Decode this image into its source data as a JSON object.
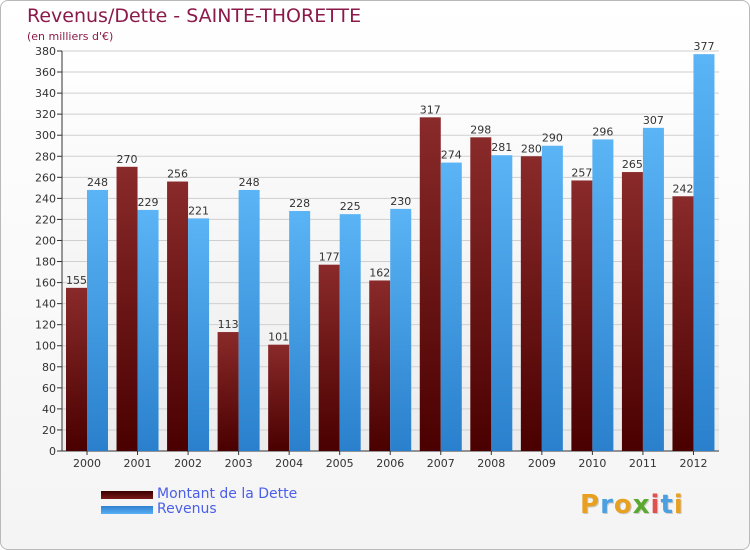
{
  "title": "Revenus/Dette - SAINTE-THORETTE",
  "subtitle": "(en milliers d'€)",
  "legend": {
    "debt": "Montant de la Dette",
    "revenue": "Revenus"
  },
  "logo": {
    "letters": [
      "P",
      "r",
      "o",
      "x",
      "i",
      "t",
      "i"
    ],
    "colors": [
      "#e8a020",
      "#4aa0e0",
      "#e8a020",
      "#5aa830",
      "#e05050",
      "#4aa0e0",
      "#e8a020"
    ]
  },
  "colors": {
    "debt": "#7a1a1a",
    "revenue": "#3f9ee8",
    "axis_text": "#333333",
    "title": "#8b1a4a"
  },
  "chart_data": {
    "type": "bar",
    "title": "Revenus/Dette - SAINTE-THORETTE",
    "ylabel": "(en milliers d'€)",
    "xlabel": "",
    "ylim": [
      0,
      380
    ],
    "ytick_step": 20,
    "grid": true,
    "legend_position": "bottom-left",
    "categories": [
      "2000",
      "2001",
      "2002",
      "2003",
      "2004",
      "2005",
      "2006",
      "2007",
      "2008",
      "2009",
      "2010",
      "2011",
      "2012"
    ],
    "series": [
      {
        "name": "Montant de la Dette",
        "values": [
          155,
          270,
          256,
          113,
          101,
          177,
          162,
          317,
          298,
          280,
          257,
          265,
          242
        ]
      },
      {
        "name": "Revenus",
        "values": [
          248,
          229,
          221,
          248,
          228,
          225,
          230,
          274,
          281,
          290,
          296,
          307,
          377
        ]
      }
    ]
  }
}
